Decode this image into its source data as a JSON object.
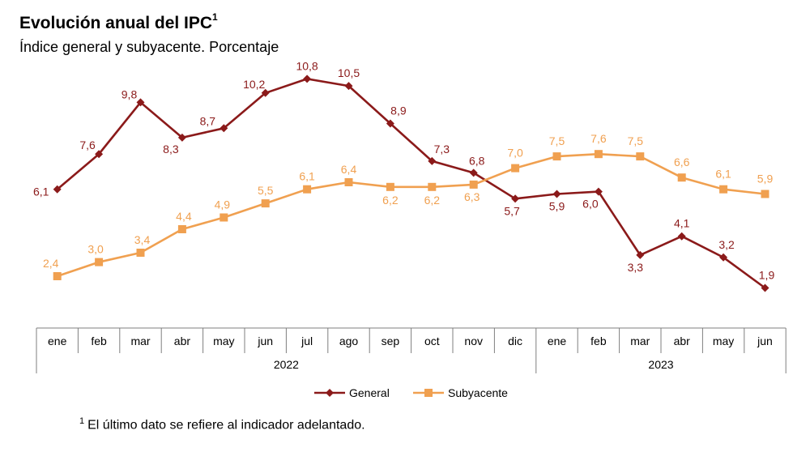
{
  "header": {
    "title": "Evolución anual del IPC",
    "title_sup": "1",
    "subtitle": "Índice general y subyacente. Porcentaje"
  },
  "footnote": {
    "marker": "1",
    "text": "El último dato se refiere al indicador adelantado."
  },
  "colors": {
    "general": "#8B1A1A",
    "subyacente": "#F0A050",
    "axis": "#7f7f7f"
  },
  "chart_data": {
    "type": "line",
    "title": "Evolución anual del IPC",
    "subtitle": "Índice general y subyacente. Porcentaje",
    "categories": [
      "ene",
      "feb",
      "mar",
      "abr",
      "may",
      "jun",
      "jul",
      "ago",
      "sep",
      "oct",
      "nov",
      "dic",
      "ene",
      "feb",
      "mar",
      "abr",
      "may",
      "jun"
    ],
    "groups": [
      {
        "label": "2022",
        "count": 12
      },
      {
        "label": "2023",
        "count": 6
      }
    ],
    "series": [
      {
        "name": "General",
        "marker": "diamond",
        "color": "#8B1A1A",
        "values": [
          6.1,
          7.6,
          9.8,
          8.3,
          8.7,
          10.2,
          10.8,
          10.5,
          8.9,
          7.3,
          6.8,
          5.7,
          5.9,
          6.0,
          3.3,
          4.1,
          3.2,
          1.9
        ]
      },
      {
        "name": "Subyacente",
        "marker": "square",
        "color": "#F0A050",
        "values": [
          2.4,
          3.0,
          3.4,
          4.4,
          4.9,
          5.5,
          6.1,
          6.4,
          6.2,
          6.2,
          6.3,
          7.0,
          7.5,
          7.6,
          7.5,
          6.6,
          6.1,
          5.9
        ]
      }
    ],
    "legend_position": "bottom",
    "grid": false
  }
}
